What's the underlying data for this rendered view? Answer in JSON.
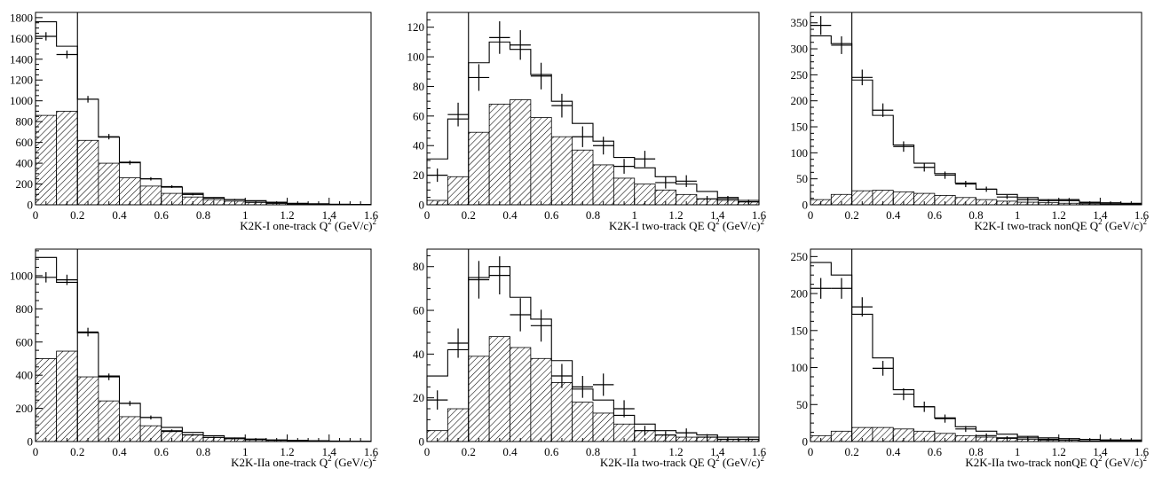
{
  "x_tick_labels": [
    "0",
    "0.2",
    "0.4",
    "0.6",
    "0.8",
    "1",
    "1.2",
    "1.4",
    "1.6"
  ],
  "cut_x": 0.2,
  "chart_data": [
    {
      "type": "bar",
      "label": "K2K-I one-track",
      "axis_label": "Q",
      "axis_sup": "2",
      "axis_unit": "(GeV/c)",
      "axis_unit_sup": "2",
      "xlim": [
        0,
        1.6
      ],
      "ylim": [
        0,
        1850
      ],
      "yticks": [
        0,
        200,
        400,
        600,
        800,
        1000,
        1200,
        1400,
        1600,
        1800
      ],
      "bin_width": 0.1,
      "mc_total": [
        1760,
        1525,
        1015,
        650,
        410,
        250,
        170,
        110,
        70,
        50,
        40,
        25,
        15,
        10,
        5,
        3
      ],
      "mc_qe": [
        860,
        900,
        620,
        400,
        260,
        180,
        110,
        75,
        50,
        35,
        22,
        12,
        8,
        5,
        3,
        2
      ],
      "data": [
        {
          "x": 0.05,
          "y": 1620,
          "yerr": 40
        },
        {
          "x": 0.15,
          "y": 1445,
          "yerr": 38
        },
        {
          "x": 0.25,
          "y": 1015,
          "yerr": 32
        },
        {
          "x": 0.35,
          "y": 655,
          "yerr": 26
        },
        {
          "x": 0.45,
          "y": 405,
          "yerr": 20
        },
        {
          "x": 0.55,
          "y": 250,
          "yerr": 16
        },
        {
          "x": 0.65,
          "y": 175,
          "yerr": 13
        },
        {
          "x": 0.75,
          "y": 100,
          "yerr": 10
        },
        {
          "x": 0.85,
          "y": 65,
          "yerr": 8
        },
        {
          "x": 0.95,
          "y": 50,
          "yerr": 7
        },
        {
          "x": 1.05,
          "y": 35,
          "yerr": 6
        },
        {
          "x": 1.15,
          "y": 20,
          "yerr": 5
        },
        {
          "x": 1.25,
          "y": 12,
          "yerr": 4
        },
        {
          "x": 1.35,
          "y": 8,
          "yerr": 3
        },
        {
          "x": 1.45,
          "y": 4,
          "yerr": 2
        },
        {
          "x": 1.55,
          "y": 3,
          "yerr": 2
        }
      ]
    },
    {
      "type": "bar",
      "label": "K2K-I two-track QE",
      "axis_label": "Q",
      "axis_sup": "2",
      "axis_unit": "(GeV/c)",
      "axis_unit_sup": "2",
      "xlim": [
        0,
        1.6
      ],
      "ylim": [
        0,
        130
      ],
      "yticks": [
        0,
        20,
        40,
        60,
        80,
        100,
        120
      ],
      "bin_width": 0.1,
      "mc_total": [
        31,
        58,
        96,
        110,
        105,
        88,
        70,
        55,
        43,
        32,
        25,
        19,
        14,
        9,
        5,
        3
      ],
      "mc_qe": [
        3,
        19,
        49,
        68,
        71,
        59,
        46,
        37,
        27,
        18,
        14,
        10,
        7,
        4,
        3,
        2
      ],
      "data": [
        {
          "x": 0.05,
          "y": 20,
          "yerr": 4.5
        },
        {
          "x": 0.15,
          "y": 61,
          "yerr": 8
        },
        {
          "x": 0.25,
          "y": 86,
          "yerr": 9
        },
        {
          "x": 0.35,
          "y": 113,
          "yerr": 11
        },
        {
          "x": 0.45,
          "y": 108,
          "yerr": 10
        },
        {
          "x": 0.55,
          "y": 87,
          "yerr": 9
        },
        {
          "x": 0.65,
          "y": 67,
          "yerr": 8
        },
        {
          "x": 0.75,
          "y": 46,
          "yerr": 7
        },
        {
          "x": 0.85,
          "y": 40,
          "yerr": 6
        },
        {
          "x": 0.95,
          "y": 26,
          "yerr": 5
        },
        {
          "x": 1.05,
          "y": 31,
          "yerr": 5.5
        },
        {
          "x": 1.15,
          "y": 15,
          "yerr": 4
        },
        {
          "x": 1.25,
          "y": 16,
          "yerr": 4
        },
        {
          "x": 1.35,
          "y": 4,
          "yerr": 2
        },
        {
          "x": 1.45,
          "y": 4,
          "yerr": 2
        },
        {
          "x": 1.55,
          "y": 2,
          "yerr": 1.5
        }
      ]
    },
    {
      "type": "bar",
      "label": "K2K-I two-track nonQE",
      "axis_label": "Q",
      "axis_sup": "2",
      "axis_unit": "(GeV/c)",
      "axis_unit_sup": "2",
      "xlim": [
        0,
        1.6
      ],
      "ylim": [
        0,
        370
      ],
      "yticks": [
        0,
        50,
        100,
        150,
        200,
        250,
        300,
        350
      ],
      "bin_width": 0.1,
      "mc_total": [
        325,
        310,
        240,
        172,
        115,
        80,
        60,
        42,
        30,
        20,
        14,
        10,
        8,
        5,
        4,
        3
      ],
      "mc_qe": [
        10,
        20,
        27,
        28,
        25,
        22,
        18,
        14,
        10,
        7,
        5,
        4,
        3,
        2,
        1,
        1
      ],
      "data": [
        {
          "x": 0.05,
          "y": 345,
          "yerr": 18
        },
        {
          "x": 0.15,
          "y": 307,
          "yerr": 17
        },
        {
          "x": 0.25,
          "y": 245,
          "yerr": 15
        },
        {
          "x": 0.35,
          "y": 182,
          "yerr": 13
        },
        {
          "x": 0.45,
          "y": 112,
          "yerr": 10
        },
        {
          "x": 0.55,
          "y": 72,
          "yerr": 8
        },
        {
          "x": 0.65,
          "y": 57,
          "yerr": 7
        },
        {
          "x": 0.75,
          "y": 40,
          "yerr": 6
        },
        {
          "x": 0.85,
          "y": 30,
          "yerr": 5
        },
        {
          "x": 0.95,
          "y": 15,
          "yerr": 4
        },
        {
          "x": 1.05,
          "y": 10,
          "yerr": 3
        },
        {
          "x": 1.15,
          "y": 8,
          "yerr": 3
        },
        {
          "x": 1.25,
          "y": 10,
          "yerr": 3
        },
        {
          "x": 1.35,
          "y": 4,
          "yerr": 2
        },
        {
          "x": 1.45,
          "y": 3,
          "yerr": 2
        },
        {
          "x": 1.55,
          "y": 2,
          "yerr": 1.5
        }
      ]
    },
    {
      "type": "bar",
      "label": "K2K-IIa one-track",
      "axis_label": "Q",
      "axis_sup": "2",
      "axis_unit": "(GeV/c)",
      "axis_unit_sup": "2",
      "xlim": [
        0,
        1.6
      ],
      "ylim": [
        0,
        1160
      ],
      "yticks": [
        0,
        200,
        400,
        600,
        800,
        1000
      ],
      "bin_width": 0.1,
      "mc_total": [
        1110,
        960,
        655,
        395,
        230,
        145,
        85,
        55,
        35,
        22,
        15,
        10,
        7,
        5,
        3,
        2
      ],
      "mc_qe": [
        500,
        545,
        390,
        245,
        150,
        95,
        60,
        40,
        25,
        16,
        10,
        7,
        5,
        3,
        2,
        1
      ],
      "data": [
        {
          "x": 0.05,
          "y": 990,
          "yerr": 31
        },
        {
          "x": 0.15,
          "y": 975,
          "yerr": 31
        },
        {
          "x": 0.25,
          "y": 660,
          "yerr": 26
        },
        {
          "x": 0.35,
          "y": 390,
          "yerr": 20
        },
        {
          "x": 0.45,
          "y": 230,
          "yerr": 15
        },
        {
          "x": 0.55,
          "y": 145,
          "yerr": 12
        },
        {
          "x": 0.65,
          "y": 65,
          "yerr": 8
        },
        {
          "x": 0.75,
          "y": 40,
          "yerr": 6
        },
        {
          "x": 0.85,
          "y": 25,
          "yerr": 5
        },
        {
          "x": 0.95,
          "y": 20,
          "yerr": 4.5
        },
        {
          "x": 1.05,
          "y": 12,
          "yerr": 3.5
        },
        {
          "x": 1.15,
          "y": 8,
          "yerr": 3
        },
        {
          "x": 1.25,
          "y": 5,
          "yerr": 2.2
        },
        {
          "x": 1.35,
          "y": 3,
          "yerr": 1.7
        },
        {
          "x": 1.45,
          "y": 2,
          "yerr": 1.4
        },
        {
          "x": 1.55,
          "y": 1,
          "yerr": 1
        }
      ]
    },
    {
      "type": "bar",
      "label": "K2K-IIa two-track QE",
      "axis_label": "Q",
      "axis_sup": "2",
      "axis_unit": "(GeV/c)",
      "axis_unit_sup": "2",
      "xlim": [
        0,
        1.6
      ],
      "ylim": [
        0,
        88
      ],
      "yticks": [
        0,
        20,
        40,
        60,
        80
      ],
      "bin_width": 0.1,
      "mc_total": [
        30,
        42,
        75,
        80,
        66,
        56,
        37,
        24,
        19,
        12,
        8,
        5,
        4,
        3,
        2,
        2
      ],
      "mc_qe": [
        5,
        15,
        39,
        48,
        43,
        38,
        27,
        18,
        13,
        8,
        5,
        3,
        2,
        2,
        1,
        1
      ],
      "data": [
        {
          "x": 0.05,
          "y": 19,
          "yerr": 4.4
        },
        {
          "x": 0.15,
          "y": 45,
          "yerr": 6.7
        },
        {
          "x": 0.25,
          "y": 74,
          "yerr": 8.6
        },
        {
          "x": 0.35,
          "y": 76,
          "yerr": 8.7
        },
        {
          "x": 0.45,
          "y": 58,
          "yerr": 7.6
        },
        {
          "x": 0.55,
          "y": 53,
          "yerr": 7.3
        },
        {
          "x": 0.65,
          "y": 30,
          "yerr": 5.5
        },
        {
          "x": 0.75,
          "y": 25,
          "yerr": 5
        },
        {
          "x": 0.85,
          "y": 26,
          "yerr": 5.1
        },
        {
          "x": 0.95,
          "y": 15,
          "yerr": 3.9
        },
        {
          "x": 1.05,
          "y": 5,
          "yerr": 2.2
        },
        {
          "x": 1.15,
          "y": 3,
          "yerr": 1.7
        },
        {
          "x": 1.25,
          "y": 4,
          "yerr": 2
        },
        {
          "x": 1.35,
          "y": 2,
          "yerr": 1.4
        },
        {
          "x": 1.45,
          "y": 1,
          "yerr": 1
        },
        {
          "x": 1.55,
          "y": 1,
          "yerr": 1
        }
      ]
    },
    {
      "type": "bar",
      "label": "K2K-IIa two-track nonQE",
      "axis_label": "Q",
      "axis_sup": "2",
      "axis_unit": "(GeV/c)",
      "axis_unit_sup": "2",
      "xlim": [
        0,
        1.6
      ],
      "ylim": [
        0,
        260
      ],
      "yticks": [
        0,
        50,
        100,
        150,
        200,
        250
      ],
      "bin_width": 0.1,
      "mc_total": [
        242,
        225,
        172,
        113,
        70,
        47,
        32,
        20,
        14,
        10,
        7,
        5,
        4,
        3,
        2,
        2
      ],
      "mc_qe": [
        8,
        14,
        19,
        19,
        17,
        14,
        11,
        8,
        6,
        4,
        3,
        2,
        2,
        1,
        1,
        1
      ],
      "data": [
        {
          "x": 0.05,
          "y": 207,
          "yerr": 14
        },
        {
          "x": 0.15,
          "y": 207,
          "yerr": 14
        },
        {
          "x": 0.25,
          "y": 182,
          "yerr": 13
        },
        {
          "x": 0.35,
          "y": 99,
          "yerr": 10
        },
        {
          "x": 0.45,
          "y": 64,
          "yerr": 8
        },
        {
          "x": 0.55,
          "y": 47,
          "yerr": 7
        },
        {
          "x": 0.65,
          "y": 31,
          "yerr": 5.5
        },
        {
          "x": 0.75,
          "y": 17,
          "yerr": 4
        },
        {
          "x": 0.85,
          "y": 8,
          "yerr": 3
        },
        {
          "x": 0.95,
          "y": 5,
          "yerr": 2.2
        },
        {
          "x": 1.05,
          "y": 5,
          "yerr": 2.2
        },
        {
          "x": 1.15,
          "y": 3,
          "yerr": 1.7
        },
        {
          "x": 1.25,
          "y": 2,
          "yerr": 1.4
        },
        {
          "x": 1.35,
          "y": 1,
          "yerr": 1
        },
        {
          "x": 1.45,
          "y": 2,
          "yerr": 1.4
        },
        {
          "x": 1.55,
          "y": 1,
          "yerr": 1
        }
      ]
    }
  ]
}
